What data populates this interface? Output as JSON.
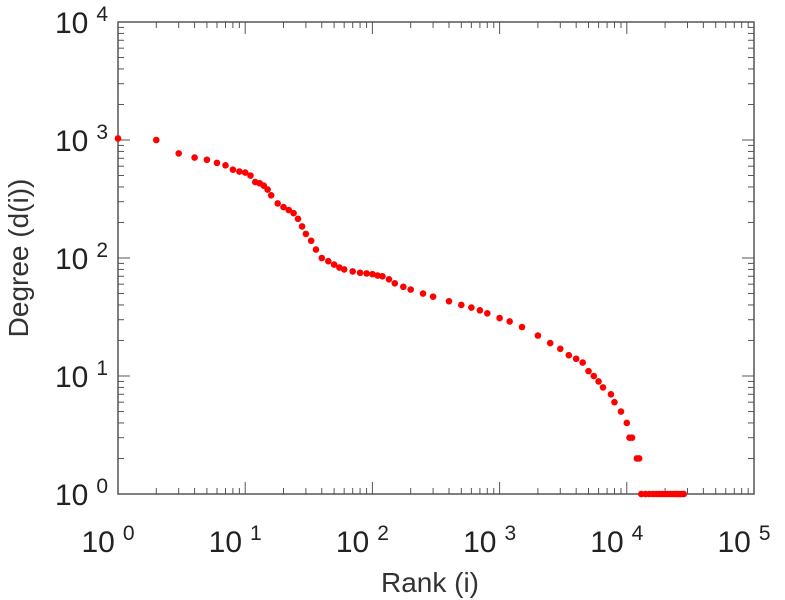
{
  "chart_data": {
    "type": "scatter",
    "xscale": "log",
    "yscale": "log",
    "xlabel": "Rank (i)",
    "ylabel": "Degree (d(i))",
    "xlim": [
      1,
      100000
    ],
    "ylim": [
      1,
      10000
    ],
    "grid": false,
    "legend": "none",
    "marker_color": "#ff0000",
    "xticks": [
      {
        "base": "10",
        "exp": "0"
      },
      {
        "base": "10",
        "exp": "1"
      },
      {
        "base": "10",
        "exp": "2"
      },
      {
        "base": "10",
        "exp": "3"
      },
      {
        "base": "10",
        "exp": "4"
      },
      {
        "base": "10",
        "exp": "5"
      }
    ],
    "yticks": [
      {
        "base": "10",
        "exp": "0"
      },
      {
        "base": "10",
        "exp": "1"
      },
      {
        "base": "10",
        "exp": "2"
      },
      {
        "base": "10",
        "exp": "3"
      },
      {
        "base": "10",
        "exp": "4"
      }
    ],
    "points": [
      [
        1,
        1030
      ],
      [
        2,
        1000
      ],
      [
        3,
        770
      ],
      [
        4,
        710
      ],
      [
        5,
        680
      ],
      [
        6,
        640
      ],
      [
        7,
        610
      ],
      [
        8,
        560
      ],
      [
        9,
        540
      ],
      [
        10,
        530
      ],
      [
        11,
        500
      ],
      [
        12,
        440
      ],
      [
        13,
        430
      ],
      [
        14,
        410
      ],
      [
        15,
        380
      ],
      [
        16,
        340
      ],
      [
        18,
        290
      ],
      [
        20,
        270
      ],
      [
        22,
        255
      ],
      [
        24,
        240
      ],
      [
        26,
        215
      ],
      [
        28,
        185
      ],
      [
        30,
        160
      ],
      [
        33,
        140
      ],
      [
        36,
        118
      ],
      [
        40,
        100
      ],
      [
        45,
        94
      ],
      [
        50,
        88
      ],
      [
        55,
        83
      ],
      [
        60,
        80
      ],
      [
        70,
        77
      ],
      [
        80,
        75
      ],
      [
        90,
        74
      ],
      [
        100,
        73
      ],
      [
        110,
        71
      ],
      [
        120,
        70
      ],
      [
        135,
        66
      ],
      [
        150,
        61
      ],
      [
        175,
        57
      ],
      [
        200,
        54
      ],
      [
        250,
        50
      ],
      [
        300,
        47
      ],
      [
        400,
        43
      ],
      [
        500,
        40
      ],
      [
        600,
        38
      ],
      [
        700,
        36
      ],
      [
        800,
        34
      ],
      [
        1000,
        31
      ],
      [
        1200,
        29
      ],
      [
        1500,
        26
      ],
      [
        2000,
        22
      ],
      [
        2500,
        19
      ],
      [
        3000,
        17
      ],
      [
        3500,
        15
      ],
      [
        4000,
        14
      ],
      [
        4500,
        13
      ],
      [
        5000,
        11
      ],
      [
        5500,
        10
      ],
      [
        6000,
        9
      ],
      [
        6500,
        8
      ],
      [
        7500,
        7
      ],
      [
        8000,
        6
      ],
      [
        9000,
        5
      ],
      [
        10000,
        4
      ],
      [
        10500,
        3
      ],
      [
        11000,
        3
      ],
      [
        12000,
        2
      ],
      [
        12500,
        2
      ],
      [
        13000,
        1
      ],
      [
        14000,
        1
      ],
      [
        15000,
        1
      ],
      [
        16000,
        1
      ],
      [
        17000,
        1
      ],
      [
        18000,
        1
      ],
      [
        19000,
        1
      ],
      [
        20000,
        1
      ],
      [
        21000,
        1
      ],
      [
        22000,
        1
      ],
      [
        23000,
        1
      ],
      [
        24000,
        1
      ],
      [
        25000,
        1
      ],
      [
        26000,
        1
      ],
      [
        27000,
        1
      ],
      [
        28000,
        1
      ]
    ]
  }
}
